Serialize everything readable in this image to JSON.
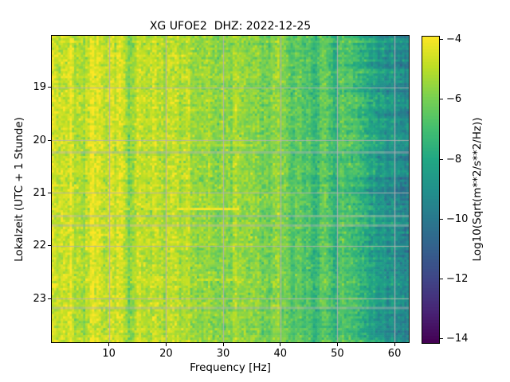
{
  "figure": {
    "background": "#ffffff",
    "text_color": "#000000"
  },
  "chart_data": {
    "type": "heatmap",
    "subtype": "spectrogram",
    "title": "XG UFOE2  DHZ: 2022-12-25",
    "xlabel": "Frequency [Hz]",
    "ylabel": "Lokalzeit (UTC + 1 Stunde)",
    "x_range_hz": [
      0,
      62.5
    ],
    "time_range_hours": [
      18.02,
      23.83
    ],
    "x_ticks": [
      10,
      20,
      30,
      40,
      50,
      60
    ],
    "x_tick_labels": [
      "10",
      "20",
      "30",
      "40",
      "50",
      "60"
    ],
    "y_ticks": [
      19,
      20,
      21,
      22,
      23
    ],
    "y_tick_labels": [
      "19",
      "20",
      "21",
      "22",
      "23"
    ],
    "grid": true,
    "grid_color": "#b0b0b0",
    "colorbar": {
      "label": "Log10(Sqrt(m**2/s**2/Hz))",
      "ticks": [
        -4,
        -6,
        -8,
        -10,
        -12,
        -14
      ],
      "tick_labels": [
        "−4",
        "−6",
        "−8",
        "−10",
        "−12",
        "−14"
      ],
      "scale_range": [
        -14.15,
        -3.9
      ],
      "colormap": "viridis",
      "colormap_stops": [
        "#440154",
        "#482475",
        "#414487",
        "#355f8d",
        "#2a788e",
        "#21918c",
        "#22a884",
        "#44bf70",
        "#7ad151",
        "#bddf26",
        "#fde725"
      ]
    },
    "spectrum_profile": {
      "freq_hz": [
        0,
        0.7,
        1.5,
        3,
        6,
        10,
        15,
        20,
        25,
        30,
        35,
        40,
        44,
        48,
        52,
        55,
        58,
        60,
        62.5
      ],
      "log_amp": [
        -4.2,
        -4.45,
        -4.85,
        -4.95,
        -5.0,
        -5.05,
        -5.15,
        -5.3,
        -5.45,
        -5.55,
        -5.75,
        -6.15,
        -6.55,
        -6.95,
        -7.35,
        -7.7,
        -8.4,
        -9.1,
        -9.7
      ]
    },
    "bright_columns": [
      {
        "freq_hz": 2.2,
        "boost": 0.55
      },
      {
        "freq_hz": 3.3,
        "boost": 0.3
      },
      {
        "freq_hz": 15.2,
        "boost": 0.35
      },
      {
        "freq_hz": 21.5,
        "boost": 0.25
      },
      {
        "freq_hz": 27.0,
        "boost": 0.2
      }
    ],
    "events": [
      {
        "time_hours": 21.31,
        "f1_hz": 22,
        "f2_hz": 33,
        "log_amp": -4.0,
        "dashed": false
      },
      {
        "time_hours": 21.31,
        "f1_hz": 12,
        "f2_hz": 21,
        "log_amp": -4.7,
        "dashed": true
      },
      {
        "time_hours": 22.66,
        "f1_hz": 14,
        "f2_hz": 34,
        "log_amp": -4.7,
        "dashed": true
      },
      {
        "time_hours": 20.12,
        "f1_hz": 24,
        "f2_hz": 36,
        "log_amp": -4.9,
        "dashed": true
      }
    ],
    "gap_rows_hours": [
      20.25,
      21.46,
      21.6,
      23.2
    ],
    "noise": {
      "seed": 7,
      "column_std": 0.28,
      "pixel_std": 0.42,
      "row_std": 0.1,
      "high_freq_row_std": 0.35
    },
    "bins": {
      "nx": 160,
      "ny": 130
    }
  }
}
